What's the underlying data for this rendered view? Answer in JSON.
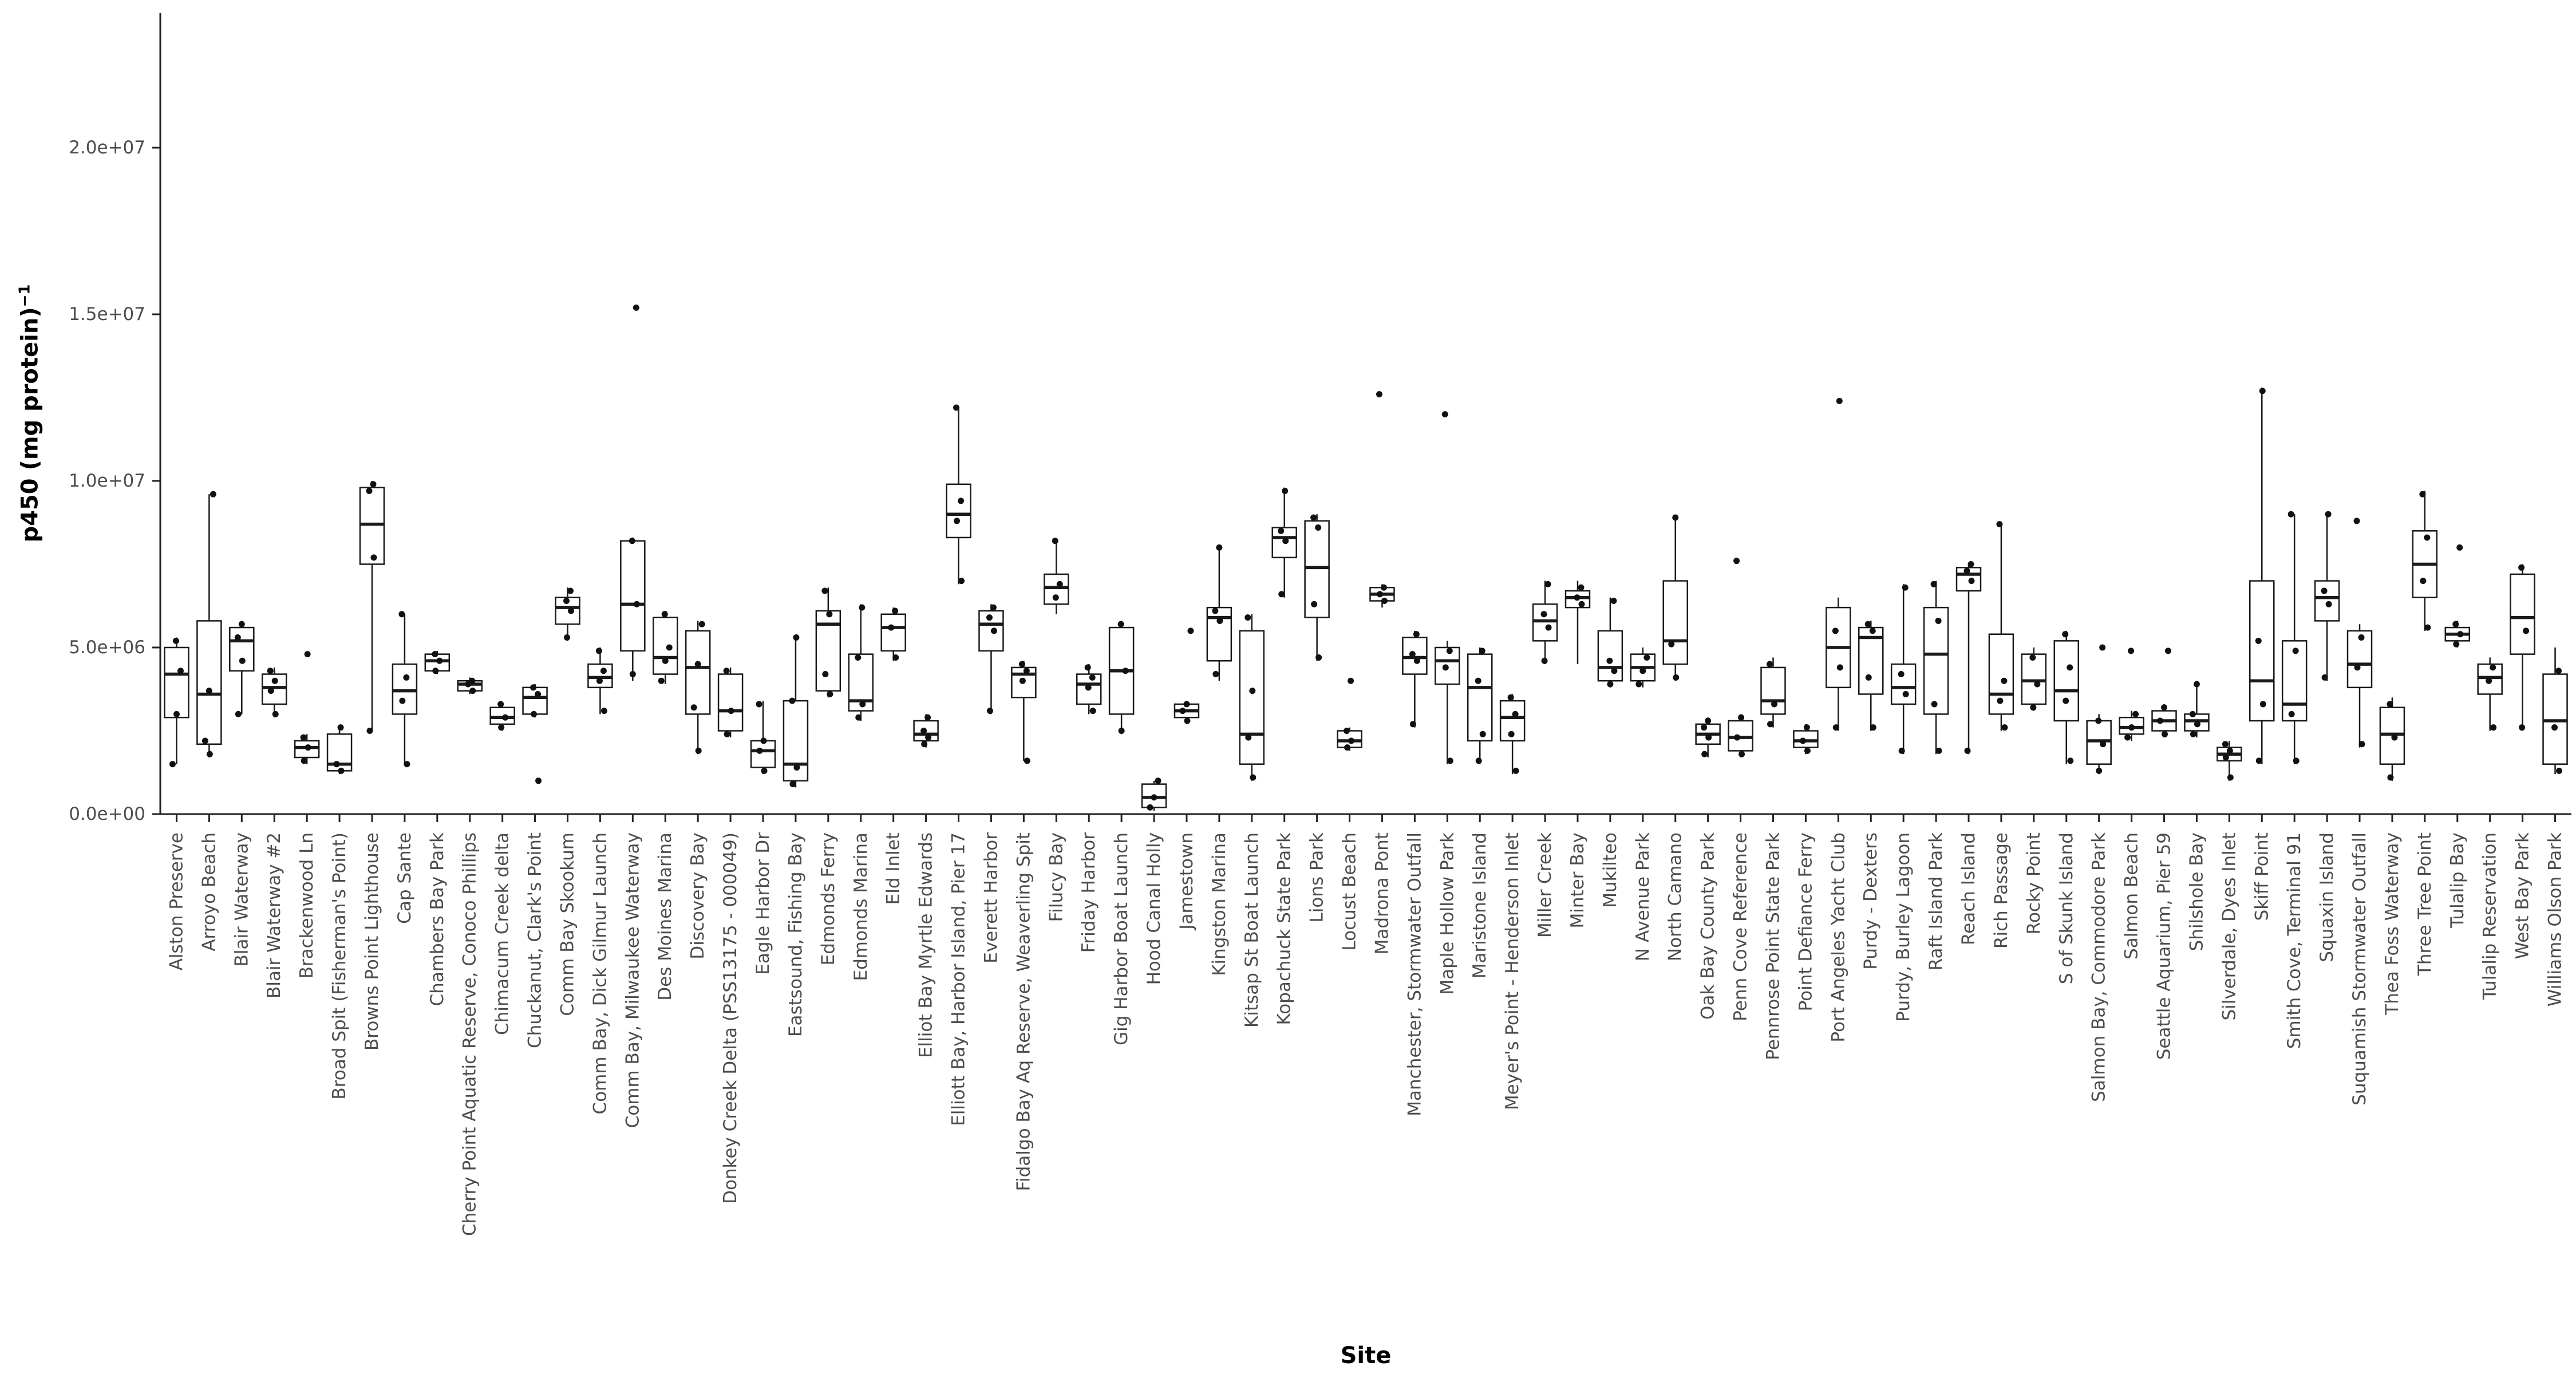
{
  "figure": {
    "xlabel": "Site",
    "ylabel_base": "p450 (mg protein)",
    "ylabel_exponent": "−1"
  },
  "chart_data": {
    "type": "boxplot",
    "title": "",
    "xlabel": "Site",
    "ylabel": "p450 (mg protein)^-1",
    "grid": false,
    "legend": "none",
    "ylim": [
      0,
      23500000
    ],
    "ytick_values": [
      0,
      5000000,
      10000000,
      15000000,
      20000000
    ],
    "ytick_labels": [
      "0.0e+00",
      "5.0e+06",
      "1.0e+07",
      "1.5e+07",
      "2.0e+07"
    ],
    "values_scale": 1000000,
    "sites": [
      {
        "name": "Alston Preserve",
        "lo": 1.5,
        "q1": 2.9,
        "med": 4.2,
        "q3": 5.0,
        "hi": 5.3,
        "points": [
          1.5,
          3.0,
          4.3,
          5.2
        ]
      },
      {
        "name": "Arroyo Beach",
        "lo": 1.7,
        "q1": 2.1,
        "med": 3.6,
        "q3": 5.8,
        "hi": 9.6,
        "points": [
          1.8,
          2.2,
          3.7,
          9.6
        ]
      },
      {
        "name": "Blair Waterway",
        "lo": 3.0,
        "q1": 4.3,
        "med": 5.2,
        "q3": 5.6,
        "hi": 5.8,
        "points": [
          3.0,
          4.6,
          5.3,
          5.7
        ]
      },
      {
        "name": "Blair Waterway #2",
        "lo": 2.9,
        "q1": 3.3,
        "med": 3.8,
        "q3": 4.2,
        "hi": 4.4,
        "points": [
          3.0,
          3.7,
          4.0,
          4.3
        ]
      },
      {
        "name": "Brackenwood Ln",
        "lo": 1.5,
        "q1": 1.7,
        "med": 2.0,
        "q3": 2.2,
        "hi": 2.4,
        "points": [
          1.6,
          2.0,
          2.3,
          4.8
        ]
      },
      {
        "name": "Broad Spit (Fisherman's Point)",
        "lo": 1.2,
        "q1": 1.3,
        "med": 1.5,
        "q3": 2.4,
        "hi": 2.6,
        "points": [
          1.3,
          1.5,
          2.6
        ]
      },
      {
        "name": "Browns Point Lighthouse",
        "lo": 2.5,
        "q1": 7.5,
        "med": 8.7,
        "q3": 9.8,
        "hi": 10.0,
        "points": [
          2.5,
          7.7,
          9.7,
          9.9
        ]
      },
      {
        "name": "Cap Sante",
        "lo": 1.5,
        "q1": 3.0,
        "med": 3.7,
        "q3": 4.5,
        "hi": 6.0,
        "points": [
          1.5,
          3.4,
          4.1,
          6.0
        ]
      },
      {
        "name": "Chambers Bay Park",
        "lo": 4.2,
        "q1": 4.3,
        "med": 4.6,
        "q3": 4.8,
        "hi": 4.9,
        "points": [
          4.3,
          4.6,
          4.8
        ]
      },
      {
        "name": "Cherry Point Aquatic Reserve, Conoco Phillips",
        "lo": 3.6,
        "q1": 3.7,
        "med": 3.9,
        "q3": 4.0,
        "hi": 4.1,
        "points": [
          3.7,
          3.9,
          4.0
        ]
      },
      {
        "name": "Chimacum Creek delta",
        "lo": 2.5,
        "q1": 2.7,
        "med": 2.9,
        "q3": 3.2,
        "hi": 3.3,
        "points": [
          2.6,
          2.9,
          3.3
        ]
      },
      {
        "name": "Chuckanut, Clark's Point",
        "lo": 2.9,
        "q1": 3.0,
        "med": 3.5,
        "q3": 3.8,
        "hi": 3.9,
        "points": [
          1.0,
          3.0,
          3.6,
          3.8
        ]
      },
      {
        "name": "Comm Bay Skookum",
        "lo": 5.2,
        "q1": 5.7,
        "med": 6.2,
        "q3": 6.5,
        "hi": 6.8,
        "points": [
          5.3,
          6.1,
          6.4,
          6.7
        ]
      },
      {
        "name": "Comm Bay, Dick Gilmur Launch",
        "lo": 3.0,
        "q1": 3.8,
        "med": 4.1,
        "q3": 4.5,
        "hi": 5.0,
        "points": [
          3.1,
          4.0,
          4.3,
          4.9
        ]
      },
      {
        "name": "Comm Bay, Milwaukee Waterway",
        "lo": 4.0,
        "q1": 4.9,
        "med": 6.3,
        "q3": 8.2,
        "hi": 8.3,
        "points": [
          4.2,
          6.3,
          8.2,
          15.2
        ]
      },
      {
        "name": "Des Moines Marina",
        "lo": 3.9,
        "q1": 4.2,
        "med": 4.7,
        "q3": 5.9,
        "hi": 6.1,
        "points": [
          4.0,
          4.6,
          5.0,
          6.0
        ]
      },
      {
        "name": "Discovery Bay",
        "lo": 1.8,
        "q1": 3.0,
        "med": 4.4,
        "q3": 5.5,
        "hi": 5.8,
        "points": [
          1.9,
          3.2,
          4.5,
          5.7
        ]
      },
      {
        "name": "Donkey Creek Delta (PSS13175 - 000049)",
        "lo": 2.3,
        "q1": 2.5,
        "med": 3.1,
        "q3": 4.2,
        "hi": 4.4,
        "points": [
          2.4,
          3.1,
          4.3
        ]
      },
      {
        "name": "Eagle Harbor Dr",
        "lo": 1.2,
        "q1": 1.4,
        "med": 1.9,
        "q3": 2.2,
        "hi": 3.4,
        "points": [
          1.3,
          1.9,
          2.2,
          3.3
        ]
      },
      {
        "name": "Eastsound, Fishing Bay",
        "lo": 0.8,
        "q1": 1.0,
        "med": 1.5,
        "q3": 3.4,
        "hi": 5.3,
        "points": [
          0.9,
          1.4,
          3.4,
          5.3
        ]
      },
      {
        "name": "Edmonds Ferry",
        "lo": 3.5,
        "q1": 3.7,
        "med": 5.7,
        "q3": 6.1,
        "hi": 6.8,
        "points": [
          3.6,
          4.2,
          6.0,
          6.7
        ]
      },
      {
        "name": "Edmonds Marina",
        "lo": 2.8,
        "q1": 3.1,
        "med": 3.4,
        "q3": 4.8,
        "hi": 6.3,
        "points": [
          2.9,
          3.3,
          4.7,
          6.2
        ]
      },
      {
        "name": "Eld Inlet",
        "lo": 4.6,
        "q1": 4.9,
        "med": 5.6,
        "q3": 6.0,
        "hi": 6.2,
        "points": [
          4.7,
          5.6,
          6.1
        ]
      },
      {
        "name": "Elliot Bay Myrtle Edwards",
        "lo": 2.0,
        "q1": 2.2,
        "med": 2.4,
        "q3": 2.8,
        "hi": 3.0,
        "points": [
          2.1,
          2.3,
          2.5,
          2.9
        ]
      },
      {
        "name": "Elliott Bay, Harbor Island, Pier 17",
        "lo": 6.9,
        "q1": 8.3,
        "med": 9.0,
        "q3": 9.9,
        "hi": 12.2,
        "points": [
          7.0,
          8.8,
          9.4,
          12.2
        ]
      },
      {
        "name": "Everett Harbor",
        "lo": 3.0,
        "q1": 4.9,
        "med": 5.7,
        "q3": 6.1,
        "hi": 6.3,
        "points": [
          3.1,
          5.5,
          5.9,
          6.2
        ]
      },
      {
        "name": "Fidalgo Bay Aq Reserve, Weaverling Spit",
        "lo": 1.6,
        "q1": 3.5,
        "med": 4.2,
        "q3": 4.4,
        "hi": 4.6,
        "points": [
          1.6,
          4.0,
          4.3,
          4.5
        ]
      },
      {
        "name": "Filucy Bay",
        "lo": 6.0,
        "q1": 6.3,
        "med": 6.8,
        "q3": 7.2,
        "hi": 8.2,
        "points": [
          6.5,
          6.9,
          8.2
        ]
      },
      {
        "name": "Friday Harbor",
        "lo": 3.0,
        "q1": 3.3,
        "med": 3.9,
        "q3": 4.2,
        "hi": 4.5,
        "points": [
          3.1,
          3.8,
          4.1,
          4.4
        ]
      },
      {
        "name": "Gig Harbor Boat Launch",
        "lo": 2.4,
        "q1": 3.0,
        "med": 4.3,
        "q3": 5.6,
        "hi": 5.8,
        "points": [
          2.5,
          4.3,
          5.7
        ]
      },
      {
        "name": "Hood Canal Holly",
        "lo": 0.1,
        "q1": 0.2,
        "med": 0.5,
        "q3": 0.9,
        "hi": 1.0,
        "points": [
          0.2,
          0.5,
          1.0
        ]
      },
      {
        "name": "Jamestown",
        "lo": 2.7,
        "q1": 2.9,
        "med": 3.1,
        "q3": 3.3,
        "hi": 3.4,
        "points": [
          2.8,
          3.1,
          3.3,
          5.5
        ]
      },
      {
        "name": "Kingston Marina",
        "lo": 4.0,
        "q1": 4.6,
        "med": 5.9,
        "q3": 6.2,
        "hi": 8.0,
        "points": [
          4.2,
          5.8,
          6.1,
          8.0
        ]
      },
      {
        "name": "Kitsap St Boat Launch",
        "lo": 1.0,
        "q1": 1.5,
        "med": 2.4,
        "q3": 5.5,
        "hi": 6.0,
        "points": [
          1.1,
          2.3,
          3.7,
          5.9
        ]
      },
      {
        "name": "Kopachuck State Park",
        "lo": 6.5,
        "q1": 7.7,
        "med": 8.3,
        "q3": 8.6,
        "hi": 9.8,
        "points": [
          6.6,
          8.2,
          8.5,
          9.7
        ]
      },
      {
        "name": "Lions Park",
        "lo": 4.6,
        "q1": 5.9,
        "med": 7.4,
        "q3": 8.8,
        "hi": 9.0,
        "points": [
          4.7,
          6.3,
          8.6,
          8.9
        ]
      },
      {
        "name": "Locust Beach",
        "lo": 1.9,
        "q1": 2.0,
        "med": 2.2,
        "q3": 2.5,
        "hi": 2.6,
        "points": [
          2.0,
          2.2,
          2.5,
          4.0
        ]
      },
      {
        "name": "Madrona Pont",
        "lo": 6.2,
        "q1": 6.4,
        "med": 6.6,
        "q3": 6.8,
        "hi": 6.9,
        "points": [
          6.4,
          6.6,
          6.8,
          12.6
        ]
      },
      {
        "name": "Manchester, Stormwater Outfall",
        "lo": 2.6,
        "q1": 4.2,
        "med": 4.7,
        "q3": 5.3,
        "hi": 5.5,
        "points": [
          2.7,
          4.6,
          4.8,
          5.4
        ]
      },
      {
        "name": "Maple Hollow Park",
        "lo": 1.5,
        "q1": 3.9,
        "med": 4.6,
        "q3": 5.0,
        "hi": 5.2,
        "points": [
          1.6,
          4.4,
          4.9,
          12.0
        ]
      },
      {
        "name": "Maristone Island",
        "lo": 1.5,
        "q1": 2.2,
        "med": 3.8,
        "q3": 4.8,
        "hi": 5.0,
        "points": [
          1.6,
          2.4,
          4.0,
          4.9
        ]
      },
      {
        "name": "Meyer's Point - Henderson Inlet",
        "lo": 1.2,
        "q1": 2.2,
        "med": 2.9,
        "q3": 3.4,
        "hi": 3.6,
        "points": [
          1.3,
          2.4,
          3.0,
          3.5
        ]
      },
      {
        "name": "Miller Creek",
        "lo": 4.5,
        "q1": 5.2,
        "med": 5.8,
        "q3": 6.3,
        "hi": 7.0,
        "points": [
          4.6,
          5.6,
          6.0,
          6.9
        ]
      },
      {
        "name": "Minter Bay",
        "lo": 4.5,
        "q1": 6.2,
        "med": 6.5,
        "q3": 6.7,
        "hi": 7.0,
        "points": [
          6.3,
          6.5,
          6.8
        ]
      },
      {
        "name": "Mukilteo",
        "lo": 3.8,
        "q1": 4.0,
        "med": 4.4,
        "q3": 5.5,
        "hi": 6.5,
        "points": [
          3.9,
          4.3,
          4.6,
          6.4
        ]
      },
      {
        "name": "N Avenue Park",
        "lo": 3.8,
        "q1": 4.0,
        "med": 4.4,
        "q3": 4.8,
        "hi": 5.0,
        "points": [
          3.9,
          4.3,
          4.7
        ]
      },
      {
        "name": "North Camano",
        "lo": 4.0,
        "q1": 4.5,
        "med": 5.2,
        "q3": 7.0,
        "hi": 8.9,
        "points": [
          4.1,
          5.1,
          8.9
        ]
      },
      {
        "name": "Oak Bay County Park",
        "lo": 1.7,
        "q1": 2.1,
        "med": 2.4,
        "q3": 2.7,
        "hi": 2.9,
        "points": [
          1.8,
          2.3,
          2.6,
          2.8
        ]
      },
      {
        "name": "Penn Cove Reference",
        "lo": 1.7,
        "q1": 1.9,
        "med": 2.3,
        "q3": 2.8,
        "hi": 3.0,
        "points": [
          1.8,
          2.3,
          2.9,
          7.6
        ]
      },
      {
        "name": "Pennrose Point State Park",
        "lo": 2.6,
        "q1": 3.0,
        "med": 3.4,
        "q3": 4.4,
        "hi": 4.7,
        "points": [
          2.7,
          3.3,
          4.5
        ]
      },
      {
        "name": "Point Defiance Ferry",
        "lo": 1.8,
        "q1": 2.0,
        "med": 2.2,
        "q3": 2.5,
        "hi": 2.7,
        "points": [
          1.9,
          2.2,
          2.6
        ]
      },
      {
        "name": "Port Angeles Yacht Club",
        "lo": 2.5,
        "q1": 3.8,
        "med": 5.0,
        "q3": 6.2,
        "hi": 6.5,
        "points": [
          2.6,
          4.4,
          5.5,
          12.4
        ]
      },
      {
        "name": "Purdy - Dexters",
        "lo": 2.5,
        "q1": 3.6,
        "med": 5.3,
        "q3": 5.6,
        "hi": 5.8,
        "points": [
          2.6,
          4.1,
          5.5,
          5.7
        ]
      },
      {
        "name": "Purdy, Burley Lagoon",
        "lo": 1.8,
        "q1": 3.3,
        "med": 3.8,
        "q3": 4.5,
        "hi": 6.9,
        "points": [
          1.9,
          3.6,
          4.2,
          6.8
        ]
      },
      {
        "name": "Raft Island Park",
        "lo": 1.8,
        "q1": 3.0,
        "med": 4.8,
        "q3": 6.2,
        "hi": 7.0,
        "points": [
          1.9,
          3.3,
          5.8,
          6.9
        ]
      },
      {
        "name": "Reach Island",
        "lo": 1.8,
        "q1": 6.7,
        "med": 7.2,
        "q3": 7.4,
        "hi": 7.5,
        "points": [
          1.9,
          7.0,
          7.3,
          7.5
        ]
      },
      {
        "name": "Rich Passage",
        "lo": 2.5,
        "q1": 3.0,
        "med": 3.6,
        "q3": 5.4,
        "hi": 8.7,
        "points": [
          2.6,
          3.4,
          4.0,
          8.7
        ]
      },
      {
        "name": "Rocky Point",
        "lo": 3.1,
        "q1": 3.3,
        "med": 4.0,
        "q3": 4.8,
        "hi": 5.0,
        "points": [
          3.2,
          3.9,
          4.7
        ]
      },
      {
        "name": "S of Skunk Island",
        "lo": 1.5,
        "q1": 2.8,
        "med": 3.7,
        "q3": 5.2,
        "hi": 5.5,
        "points": [
          1.6,
          3.4,
          4.4,
          5.4
        ]
      },
      {
        "name": "Salmon Bay, Commodore Park",
        "lo": 1.2,
        "q1": 1.5,
        "med": 2.2,
        "q3": 2.8,
        "hi": 3.0,
        "points": [
          1.3,
          2.1,
          2.8,
          5.0
        ]
      },
      {
        "name": "Salmon Beach",
        "lo": 2.2,
        "q1": 2.4,
        "med": 2.6,
        "q3": 2.9,
        "hi": 3.1,
        "points": [
          2.3,
          2.6,
          3.0,
          4.9
        ]
      },
      {
        "name": "Seattle Aquarium, Pier 59",
        "lo": 2.3,
        "q1": 2.5,
        "med": 2.8,
        "q3": 3.1,
        "hi": 3.3,
        "points": [
          2.4,
          2.8,
          3.2,
          4.9
        ]
      },
      {
        "name": "Shilshole Bay",
        "lo": 2.3,
        "q1": 2.5,
        "med": 2.8,
        "q3": 3.0,
        "hi": 4.0,
        "points": [
          2.4,
          2.7,
          3.0,
          3.9
        ]
      },
      {
        "name": "Silverdale, Dyes Inlet",
        "lo": 1.0,
        "q1": 1.6,
        "med": 1.8,
        "q3": 2.0,
        "hi": 2.2,
        "points": [
          1.1,
          1.7,
          1.9,
          2.1
        ]
      },
      {
        "name": "Skiff Point",
        "lo": 1.5,
        "q1": 2.8,
        "med": 4.0,
        "q3": 7.0,
        "hi": 12.8,
        "points": [
          1.6,
          3.3,
          5.2,
          12.7
        ]
      },
      {
        "name": "Smith Cove, Terminal 91",
        "lo": 1.5,
        "q1": 2.8,
        "med": 3.3,
        "q3": 5.2,
        "hi": 9.0,
        "points": [
          1.6,
          3.0,
          4.9,
          9.0
        ]
      },
      {
        "name": "Squaxin Island",
        "lo": 4.0,
        "q1": 5.8,
        "med": 6.5,
        "q3": 7.0,
        "hi": 9.0,
        "points": [
          4.1,
          6.3,
          6.7,
          9.0
        ]
      },
      {
        "name": "Suquamish Stormwater Outfall",
        "lo": 2.0,
        "q1": 3.8,
        "med": 4.5,
        "q3": 5.5,
        "hi": 5.7,
        "points": [
          2.1,
          4.4,
          5.3,
          8.8
        ]
      },
      {
        "name": "Thea Foss Waterway",
        "lo": 1.0,
        "q1": 1.5,
        "med": 2.4,
        "q3": 3.2,
        "hi": 3.5,
        "points": [
          1.1,
          2.3,
          3.3
        ]
      },
      {
        "name": "Three Tree Point",
        "lo": 5.5,
        "q1": 6.5,
        "med": 7.5,
        "q3": 8.5,
        "hi": 9.7,
        "points": [
          5.6,
          7.0,
          8.3,
          9.6
        ]
      },
      {
        "name": "Tulalip Bay",
        "lo": 5.0,
        "q1": 5.2,
        "med": 5.4,
        "q3": 5.6,
        "hi": 5.8,
        "points": [
          5.1,
          5.4,
          5.7,
          8.0
        ]
      },
      {
        "name": "Tulalip Reservation",
        "lo": 2.5,
        "q1": 3.6,
        "med": 4.1,
        "q3": 4.5,
        "hi": 4.7,
        "points": [
          2.6,
          4.0,
          4.4
        ]
      },
      {
        "name": "West Bay Park",
        "lo": 2.5,
        "q1": 4.8,
        "med": 5.9,
        "q3": 7.2,
        "hi": 7.5,
        "points": [
          2.6,
          5.5,
          7.4
        ]
      },
      {
        "name": "Williams Olson Park",
        "lo": 1.2,
        "q1": 1.5,
        "med": 2.8,
        "q3": 4.2,
        "hi": 5.0,
        "points": [
          1.3,
          2.6,
          4.3
        ]
      }
    ]
  }
}
